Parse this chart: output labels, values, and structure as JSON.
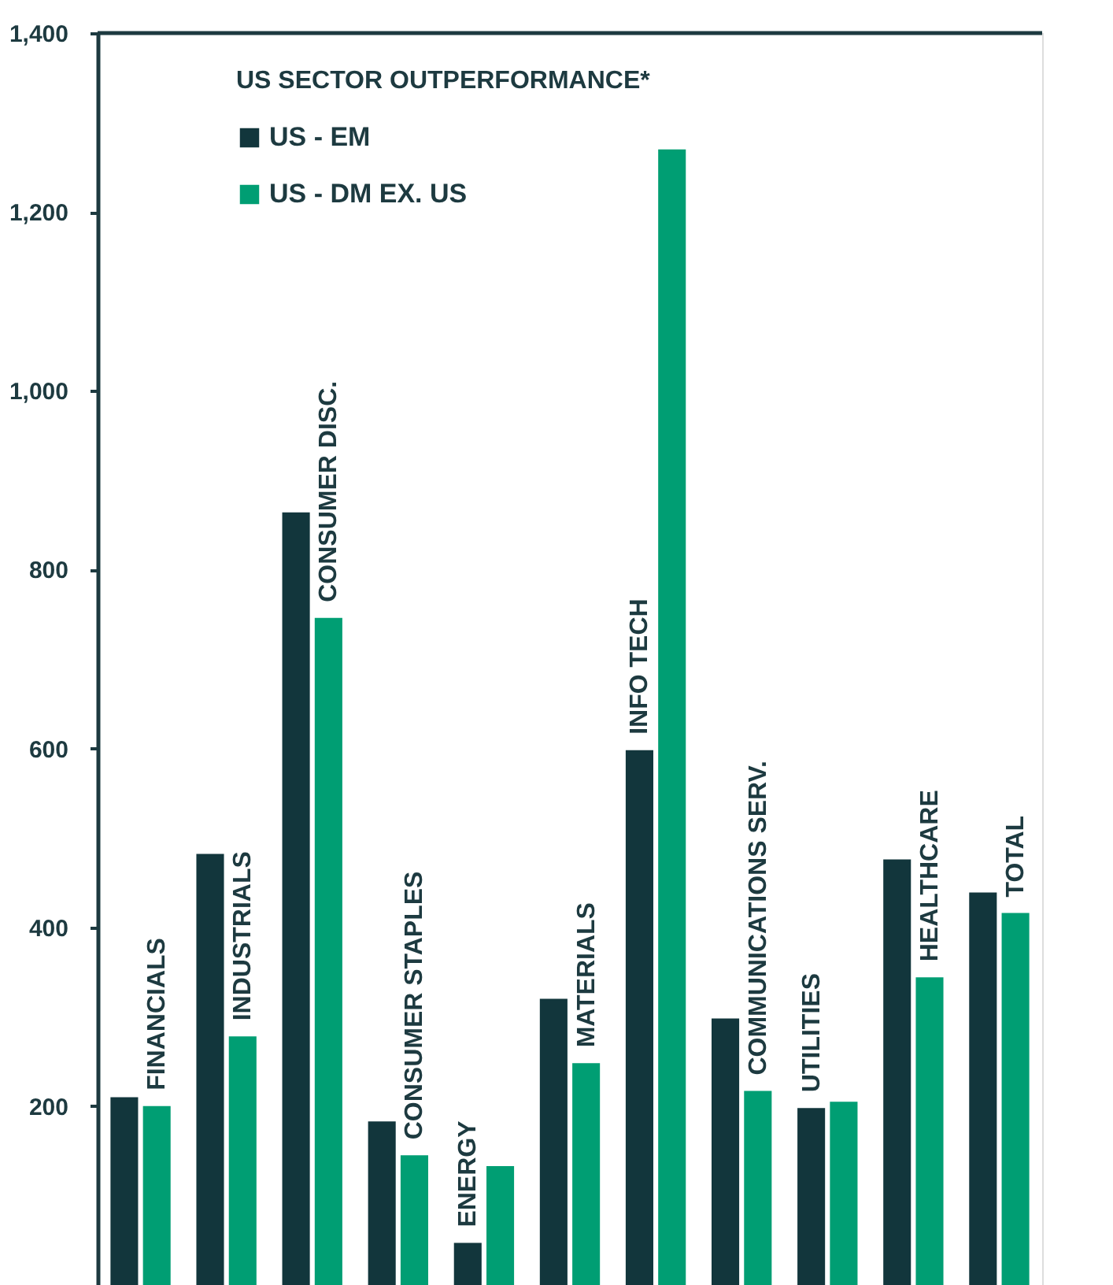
{
  "chart_data": {
    "type": "bar",
    "legend_title": "US SECTOR OUTPERFORMANCE*",
    "categories": [
      "FINANCIALS",
      "INDUSTRIALS",
      "CONSUMER DISC.",
      "CONSUMER STAPLES",
      "ENERGY",
      "MATERIALS",
      "INFO TECH",
      "COMMUNICATIONS SERV.",
      "UTILITIES",
      "HEALTHCARE",
      "TOTAL"
    ],
    "series": [
      {
        "name": "US - EM",
        "color": "#12363c",
        "values": [
          210,
          482,
          864,
          183,
          47,
          320,
          598,
          298,
          198,
          476,
          439
        ]
      },
      {
        "name": "US - DM EX. US",
        "color": "#009e73",
        "values": [
          200,
          278,
          746,
          145,
          133,
          248,
          1270,
          217,
          205,
          344,
          416
        ]
      }
    ],
    "ylim": [
      0,
      1400
    ],
    "yticks": [
      200,
      400,
      600,
      800,
      {
        "value": 1000,
        "label": "1,000"
      },
      {
        "value": 1200,
        "label": "1,200"
      },
      {
        "value": 1400,
        "label": "1,400"
      }
    ],
    "tick_labels": "y",
    "grid": false,
    "legend": "top left"
  }
}
